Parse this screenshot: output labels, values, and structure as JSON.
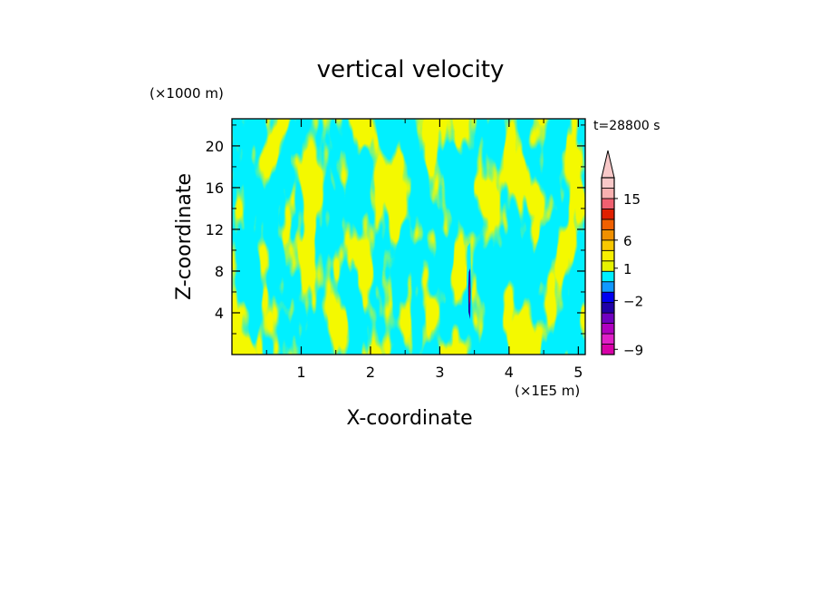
{
  "chart_data": {
    "type": "heatmap",
    "title": "vertical velocity",
    "xlabel": "X-coordinate",
    "ylabel": "Z-coordinate",
    "x_unit": "(×1E5 m)",
    "y_unit": "(×1000 m)",
    "time_label": "t=28800 s",
    "xlim": [
      0,
      5.1
    ],
    "ylim": [
      0,
      22.6
    ],
    "x_ticks": [
      1,
      2,
      3,
      4,
      5
    ],
    "y_ticks": [
      4,
      8,
      12,
      16,
      20
    ],
    "field_levels": [
      {
        "value": 0.5,
        "color": "#e6f200"
      },
      {
        "value": -0.5,
        "color": "#00f0ff"
      }
    ],
    "colorbar": {
      "extend": "max",
      "extend_color": "#f8c8c8",
      "bands": [
        {
          "color": "#d800a8"
        },
        {
          "color": "#e020c8"
        },
        {
          "color": "#b000c0"
        },
        {
          "color": "#7000c0"
        },
        {
          "color": "#2000a8"
        },
        {
          "color": "#0000f0"
        },
        {
          "color": "#1098ff"
        },
        {
          "color": "#00f0ff"
        },
        {
          "color": "#e6f200"
        },
        {
          "color": "#f8f000"
        },
        {
          "color": "#f8c800"
        },
        {
          "color": "#f09000"
        },
        {
          "color": "#f06000"
        },
        {
          "color": "#e02000"
        },
        {
          "color": "#f06070"
        },
        {
          "color": "#f8b0b0"
        },
        {
          "color": "#f8c8c8"
        }
      ],
      "tick_labels": [
        "15",
        "6",
        "1",
        "−2",
        "−9"
      ]
    }
  }
}
